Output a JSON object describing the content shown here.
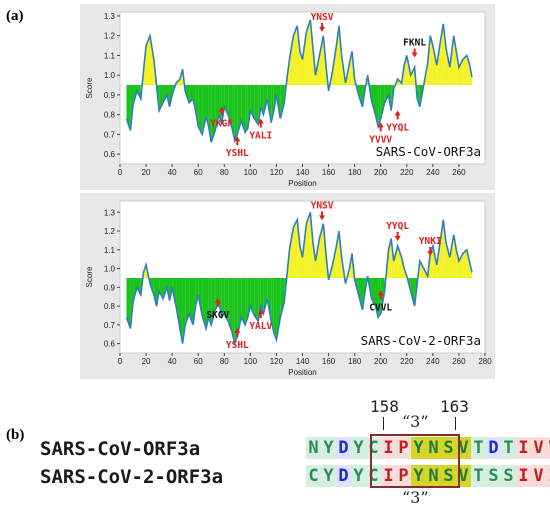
{
  "panel_a_label": "(a)",
  "panel_b_label": "(b)",
  "colors": {
    "above": "#f2f227",
    "below": "#19c319",
    "line": "#2f7fbf",
    "annot": "#e0201d"
  },
  "chart_data": [
    {
      "type": "area",
      "xlabel": "Position",
      "ylabel": "Score",
      "xlim": [
        0,
        280
      ],
      "ylim": [
        0.55,
        1.32
      ],
      "threshold": 0.95,
      "xticks": [
        0,
        20,
        40,
        60,
        80,
        100,
        120,
        140,
        160,
        180,
        200,
        220,
        240,
        260
      ],
      "yticks": [
        0.6,
        0.7,
        0.8,
        0.9,
        1.0,
        1.1,
        1.2,
        1.3
      ],
      "inset_label": "SARS-CoV-ORF3a",
      "annotations": [
        {
          "text": "YNSV",
          "x": 155,
          "y": 1.27,
          "color": "red",
          "arrow": "down"
        },
        {
          "text": "FKNL",
          "x": 226,
          "y": 1.14,
          "color": "black",
          "arrow": "down"
        },
        {
          "text": "YKGF",
          "x": 78,
          "y": 0.78,
          "color": "red",
          "arrow": "up"
        },
        {
          "text": "YALI",
          "x": 108,
          "y": 0.72,
          "color": "red",
          "arrow": "up"
        },
        {
          "text": "YSHL",
          "x": 90,
          "y": 0.63,
          "color": "red",
          "arrow": "up"
        },
        {
          "text": "YYQL",
          "x": 213,
          "y": 0.76,
          "color": "red",
          "arrow": "up"
        },
        {
          "text": "YVVV",
          "x": 200,
          "y": 0.7,
          "color": "red",
          "arrow": "up"
        }
      ],
      "x": [
        5,
        8,
        10,
        13,
        16,
        18,
        20,
        23,
        26,
        28,
        30,
        33,
        36,
        38,
        40,
        43,
        46,
        48,
        50,
        53,
        56,
        58,
        60,
        63,
        66,
        68,
        70,
        73,
        76,
        78,
        80,
        83,
        86,
        88,
        90,
        93,
        96,
        98,
        100,
        103,
        106,
        108,
        110,
        113,
        116,
        118,
        120,
        123,
        126,
        128,
        130,
        133,
        136,
        138,
        140,
        143,
        146,
        148,
        150,
        153,
        156,
        158,
        160,
        163,
        166,
        168,
        170,
        173,
        176,
        178,
        180,
        183,
        186,
        188,
        190,
        193,
        196,
        198,
        200,
        203,
        206,
        208,
        210,
        213,
        216,
        218,
        220,
        223,
        226,
        228,
        230,
        233,
        236,
        238,
        240,
        243,
        246,
        248,
        250,
        253,
        256,
        258,
        260,
        263,
        266,
        268,
        270
      ],
      "y": [
        0.78,
        0.72,
        0.85,
        0.92,
        0.88,
        1.02,
        1.15,
        1.2,
        1.08,
        0.95,
        0.82,
        0.86,
        0.9,
        0.84,
        0.9,
        0.96,
        0.98,
        1.03,
        0.92,
        0.86,
        0.88,
        0.82,
        0.74,
        0.7,
        0.79,
        0.74,
        0.66,
        0.72,
        0.8,
        0.75,
        0.84,
        0.8,
        0.73,
        0.67,
        0.7,
        0.77,
        0.71,
        0.73,
        0.82,
        0.78,
        0.75,
        0.84,
        0.8,
        0.88,
        0.76,
        0.82,
        0.9,
        0.78,
        0.86,
        0.98,
        1.08,
        1.2,
        1.25,
        1.12,
        1.08,
        1.22,
        1.28,
        1.14,
        1.0,
        1.1,
        1.2,
        1.05,
        0.92,
        1.02,
        1.15,
        1.25,
        1.1,
        0.96,
        1.06,
        1.12,
        0.98,
        0.9,
        0.84,
        0.93,
        1.0,
        0.87,
        0.8,
        0.74,
        0.78,
        0.86,
        0.9,
        0.82,
        0.93,
        0.98,
        0.96,
        1.05,
        1.1,
        1.0,
        1.04,
        0.88,
        0.84,
        0.95,
        1.06,
        1.2,
        1.15,
        1.05,
        1.18,
        1.26,
        1.14,
        1.04,
        1.2,
        1.12,
        1.04,
        1.08,
        1.1,
        1.06,
        0.99
      ]
    },
    {
      "type": "area",
      "xlabel": "Position",
      "ylabel": "Score",
      "xlim": [
        0,
        280
      ],
      "ylim": [
        0.55,
        1.36
      ],
      "threshold": 0.95,
      "xticks": [
        0,
        20,
        40,
        60,
        80,
        100,
        120,
        140,
        160,
        180,
        200,
        220,
        240,
        260,
        280
      ],
      "yticks": [
        0.6,
        0.7,
        0.8,
        0.9,
        1.0,
        1.1,
        1.2,
        1.3
      ],
      "inset_label": "SARS-CoV-2-ORF3a",
      "annotations": [
        {
          "text": "YNSV",
          "x": 155,
          "y": 1.31,
          "color": "red",
          "arrow": "down"
        },
        {
          "text": "YYQL",
          "x": 213,
          "y": 1.2,
          "color": "red",
          "arrow": "down"
        },
        {
          "text": "YNKI",
          "x": 238,
          "y": 1.12,
          "color": "red",
          "arrow": "down"
        },
        {
          "text": "SKGV",
          "x": 75,
          "y": 0.78,
          "color": "black",
          "arrow": "up"
        },
        {
          "text": "YALV",
          "x": 108,
          "y": 0.72,
          "color": "red",
          "arrow": "up"
        },
        {
          "text": "YSHL",
          "x": 90,
          "y": 0.62,
          "color": "red",
          "arrow": "up"
        },
        {
          "text": "CVVL",
          "x": 200,
          "y": 0.82,
          "color": "black",
          "arrow": "up"
        }
      ],
      "x": [
        5,
        8,
        10,
        13,
        16,
        18,
        20,
        23,
        26,
        28,
        30,
        33,
        36,
        38,
        40,
        43,
        46,
        48,
        50,
        53,
        56,
        58,
        60,
        63,
        66,
        68,
        70,
        73,
        76,
        78,
        80,
        83,
        86,
        88,
        90,
        93,
        96,
        98,
        100,
        103,
        106,
        108,
        110,
        113,
        116,
        118,
        120,
        123,
        126,
        128,
        130,
        133,
        136,
        138,
        140,
        143,
        146,
        148,
        150,
        153,
        156,
        158,
        160,
        163,
        166,
        168,
        170,
        173,
        176,
        178,
        180,
        183,
        186,
        188,
        190,
        193,
        196,
        198,
        200,
        203,
        206,
        208,
        210,
        213,
        216,
        218,
        220,
        223,
        226,
        228,
        230,
        233,
        236,
        238,
        240,
        243,
        246,
        248,
        250,
        253,
        256,
        258,
        260,
        263,
        266,
        268,
        270
      ],
      "y": [
        0.74,
        0.68,
        0.82,
        0.9,
        0.86,
        0.98,
        1.02,
        0.92,
        0.86,
        0.8,
        0.88,
        0.84,
        0.9,
        0.83,
        0.9,
        0.8,
        0.68,
        0.6,
        0.7,
        0.76,
        0.7,
        0.8,
        0.86,
        0.75,
        0.68,
        0.74,
        0.7,
        0.78,
        0.82,
        0.74,
        0.76,
        0.72,
        0.66,
        0.6,
        0.64,
        0.74,
        0.7,
        0.74,
        0.8,
        0.75,
        0.72,
        0.8,
        0.76,
        0.84,
        0.72,
        0.66,
        0.62,
        0.74,
        0.82,
        0.96,
        1.1,
        1.22,
        1.26,
        1.12,
        1.06,
        1.24,
        1.3,
        1.14,
        1.04,
        1.16,
        1.24,
        1.08,
        0.94,
        1.02,
        1.12,
        1.2,
        1.06,
        0.92,
        1.0,
        1.08,
        0.94,
        0.86,
        0.78,
        0.88,
        0.96,
        0.84,
        0.8,
        0.74,
        0.76,
        0.88,
        1.1,
        1.16,
        1.04,
        1.12,
        1.06,
        1.0,
        0.96,
        0.88,
        0.8,
        0.92,
        1.04,
        1.0,
        0.96,
        1.08,
        1.12,
        1.02,
        1.16,
        1.26,
        1.14,
        1.06,
        1.18,
        1.1,
        1.04,
        1.08,
        1.1,
        1.04,
        0.98
      ]
    }
  ],
  "panel_b": {
    "pos_start": "158",
    "pos_end": "163",
    "quote_top": "“3”",
    "quote_bottom": "“3”",
    "row1": {
      "name": "SARS-CoV-ORF3a",
      "seq": [
        "N",
        "Y",
        "D",
        "Y",
        "C",
        "I",
        "P",
        "Y",
        "N",
        "S",
        "V",
        "T",
        "D",
        "T",
        "I",
        "V",
        "V"
      ]
    },
    "row2": {
      "name": "SARS-CoV-2-ORF3a",
      "seq": [
        "C",
        "Y",
        "D",
        "Y",
        "C",
        "I",
        "P",
        "Y",
        "N",
        "S",
        "V",
        "T",
        "S",
        "S",
        "I",
        "V",
        "I"
      ]
    }
  }
}
